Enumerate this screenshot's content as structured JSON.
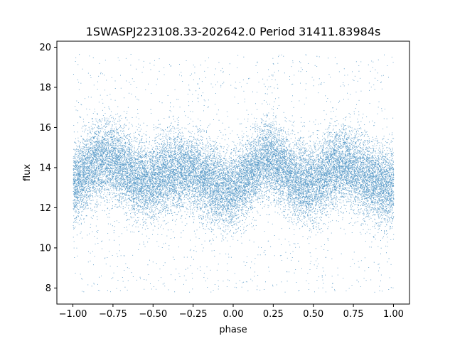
{
  "chart_data": {
    "type": "scatter",
    "title": "1SWASPJ223108.33-202642.0 Period 31411.83984s",
    "xlabel": "phase",
    "ylabel": "flux",
    "xlim": [
      -1.1,
      1.1
    ],
    "ylim": [
      7.2,
      20.3
    ],
    "xticks": [
      -1.0,
      -0.75,
      -0.5,
      -0.25,
      0.0,
      0.25,
      0.5,
      0.75,
      1.0
    ],
    "xtick_labels": [
      "−1.00",
      "−0.75",
      "−0.50",
      "−0.25",
      "0.00",
      "0.25",
      "0.50",
      "0.75",
      "1.00"
    ],
    "yticks": [
      8,
      10,
      12,
      14,
      16,
      18,
      20
    ],
    "ytick_labels": [
      "8",
      "10",
      "12",
      "14",
      "16",
      "18",
      "20"
    ],
    "grid": false,
    "series": [
      {
        "color": "#1f77b4",
        "x_range": [
          -1.0,
          1.0
        ],
        "y_range": [
          7.8,
          19.7
        ],
        "profile_phase": [
          -1.0,
          -0.9,
          -0.8,
          -0.7,
          -0.6,
          -0.5,
          -0.4,
          -0.3,
          -0.2,
          -0.1,
          0.0,
          0.1,
          0.2,
          0.3,
          0.4,
          0.5,
          0.6,
          0.7,
          0.8,
          0.9,
          1.0
        ],
        "profile_median_flux": [
          13.2,
          14.0,
          14.5,
          14.2,
          13.4,
          13.3,
          13.8,
          14.0,
          13.6,
          13.0,
          12.9,
          13.7,
          14.5,
          14.1,
          13.3,
          13.2,
          13.9,
          14.2,
          13.7,
          13.2,
          13.0
        ],
        "profile_scatter": 0.95,
        "points_approx": 60000
      }
    ]
  }
}
